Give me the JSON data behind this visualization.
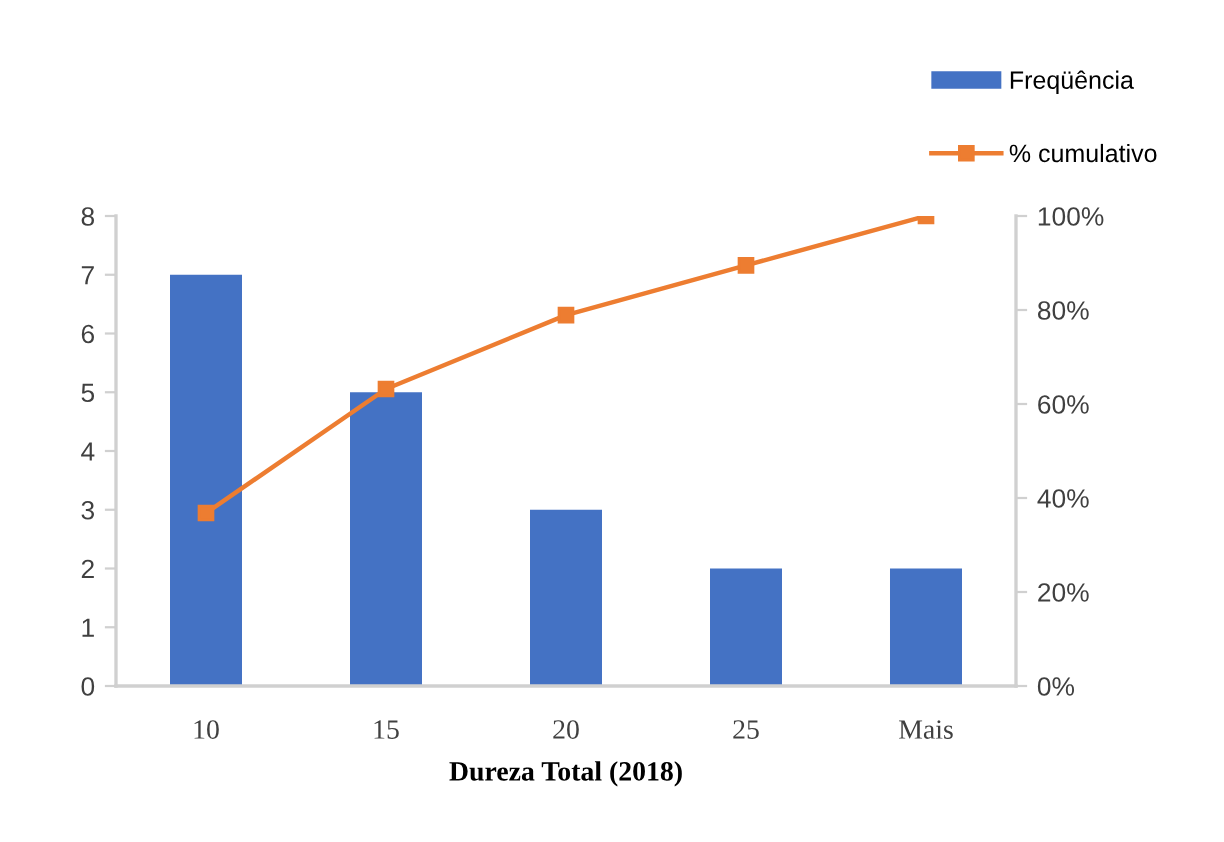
{
  "chart_data": {
    "type": "bar",
    "categories": [
      "10",
      "15",
      "20",
      "25",
      "Mais"
    ],
    "series": [
      {
        "name": "Freqüência",
        "color": "#4472c4",
        "values": [
          7,
          5,
          3,
          2,
          2
        ]
      },
      {
        "name": "% cumulativo",
        "type": "line",
        "axis": "y2",
        "color": "#ed7d31",
        "marker": "square",
        "line_style": "solid",
        "values": [
          36.8,
          63.2,
          78.9,
          89.5,
          100
        ]
      }
    ],
    "xlabel": "Dureza Total (2018)",
    "ylim": [
      0,
      8
    ],
    "yticks": [
      0,
      1,
      2,
      3,
      4,
      5,
      6,
      7,
      8
    ],
    "y2lim": [
      0,
      100
    ],
    "y2ticks": [
      {
        "value": 0,
        "label": "0%"
      },
      {
        "value": 20,
        "label": "20%"
      },
      {
        "value": 40,
        "label": "40%"
      },
      {
        "value": 60,
        "label": "60%"
      },
      {
        "value": 80,
        "label": "80%"
      },
      {
        "value": 100,
        "label": "100%"
      }
    ],
    "legend": "top right"
  }
}
